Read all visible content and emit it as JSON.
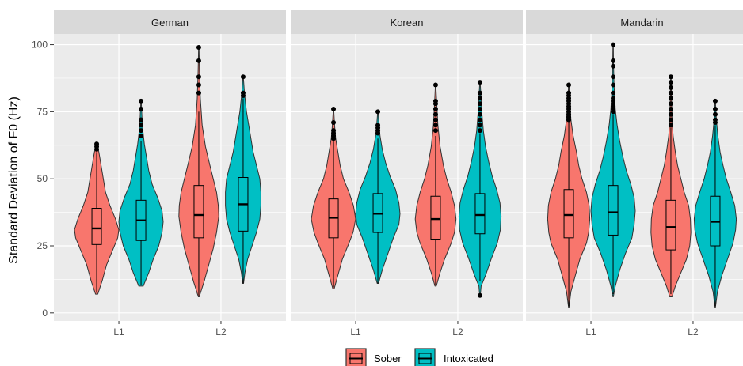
{
  "chart_data": {
    "type": "violin",
    "ylabel": "Standard Deviation of F0 (Hz)",
    "ylim": [
      -3,
      104
    ],
    "yticks": [
      0,
      25,
      50,
      75,
      100
    ],
    "categories": [
      "L1",
      "L2"
    ],
    "series_names": [
      "Sober",
      "Intoxicated"
    ],
    "colors": {
      "Sober": "#F8766D",
      "Intoxicated": "#00BFC4",
      "panel_bg": "#EBEBEB",
      "strip_bg": "#D9D9D9",
      "grid": "#FFFFFF"
    },
    "legend_position": "bottom",
    "grid": true,
    "panels": [
      {
        "label": "German",
        "groups": [
          {
            "x": "L1",
            "series": "Sober",
            "min": 7,
            "max": 63,
            "q1": 25.5,
            "median": 31.5,
            "q3": 39,
            "whisker_low": 7.5,
            "whisker_high": 60,
            "outliers": [
              61,
              62,
              63
            ],
            "density": [
              [
                7,
                0.05
              ],
              [
                12,
                0.25
              ],
              [
                18,
                0.45
              ],
              [
                24,
                0.75
              ],
              [
                28,
                0.95
              ],
              [
                31,
                1.0
              ],
              [
                35,
                0.85
              ],
              [
                40,
                0.6
              ],
              [
                45,
                0.4
              ],
              [
                50,
                0.3
              ],
              [
                55,
                0.2
              ],
              [
                60,
                0.1
              ],
              [
                63,
                0.02
              ]
            ]
          },
          {
            "x": "L1",
            "series": "Intoxicated",
            "min": 10,
            "max": 79,
            "q1": 27,
            "median": 34.5,
            "q3": 42,
            "whisker_low": 10.5,
            "whisker_high": 64,
            "outliers": [
              66,
              68,
              70,
              72,
              76,
              79
            ],
            "density": [
              [
                10,
                0.1
              ],
              [
                15,
                0.35
              ],
              [
                20,
                0.55
              ],
              [
                25,
                0.8
              ],
              [
                30,
                0.95
              ],
              [
                34,
                1.0
              ],
              [
                38,
                0.95
              ],
              [
                43,
                0.75
              ],
              [
                48,
                0.5
              ],
              [
                53,
                0.35
              ],
              [
                58,
                0.25
              ],
              [
                63,
                0.15
              ],
              [
                68,
                0.08
              ],
              [
                73,
                0.04
              ],
              [
                79,
                0.01
              ]
            ]
          },
          {
            "x": "L2",
            "series": "Sober",
            "min": 6,
            "max": 99,
            "q1": 28,
            "median": 36.5,
            "q3": 47.5,
            "whisker_low": 6.5,
            "whisker_high": 75,
            "outliers": [
              82,
              85,
              88,
              94,
              99
            ],
            "density": [
              [
                6,
                0.02
              ],
              [
                12,
                0.25
              ],
              [
                18,
                0.45
              ],
              [
                24,
                0.65
              ],
              [
                30,
                0.8
              ],
              [
                36,
                0.9
              ],
              [
                40,
                0.88
              ],
              [
                45,
                0.8
              ],
              [
                50,
                0.65
              ],
              [
                55,
                0.5
              ],
              [
                62,
                0.3
              ],
              [
                70,
                0.15
              ],
              [
                80,
                0.07
              ],
              [
                90,
                0.03
              ],
              [
                99,
                0.01
              ]
            ]
          },
          {
            "x": "L2",
            "series": "Intoxicated",
            "min": 11,
            "max": 88,
            "q1": 30.5,
            "median": 40.5,
            "q3": 50.5,
            "whisker_low": 11,
            "whisker_high": 80,
            "outliers": [
              81,
              82,
              88
            ],
            "density": [
              [
                11,
                0.02
              ],
              [
                15,
                0.08
              ],
              [
                20,
                0.2
              ],
              [
                25,
                0.4
              ],
              [
                30,
                0.6
              ],
              [
                35,
                0.75
              ],
              [
                40,
                0.8
              ],
              [
                45,
                0.8
              ],
              [
                50,
                0.75
              ],
              [
                55,
                0.6
              ],
              [
                60,
                0.45
              ],
              [
                65,
                0.35
              ],
              [
                70,
                0.25
              ],
              [
                75,
                0.15
              ],
              [
                82,
                0.06
              ],
              [
                88,
                0.01
              ]
            ]
          }
        ]
      },
      {
        "label": "Korean",
        "groups": [
          {
            "x": "L1",
            "series": "Sober",
            "min": 9,
            "max": 76,
            "q1": 28,
            "median": 35.5,
            "q3": 42.5,
            "whisker_low": 9.5,
            "whisker_high": 64,
            "outliers": [
              65,
              66,
              67,
              68,
              71,
              76
            ],
            "density": [
              [
                9,
                0.03
              ],
              [
                14,
                0.2
              ],
              [
                20,
                0.4
              ],
              [
                26,
                0.7
              ],
              [
                30,
                0.88
              ],
              [
                35,
                1.0
              ],
              [
                40,
                0.9
              ],
              [
                45,
                0.7
              ],
              [
                50,
                0.45
              ],
              [
                55,
                0.3
              ],
              [
                60,
                0.2
              ],
              [
                65,
                0.1
              ],
              [
                70,
                0.05
              ],
              [
                76,
                0.01
              ]
            ]
          },
          {
            "x": "L1",
            "series": "Intoxicated",
            "min": 11,
            "max": 75,
            "q1": 30,
            "median": 37,
            "q3": 44.5,
            "whisker_low": 11,
            "whisker_high": 65,
            "outliers": [
              67,
              68,
              69,
              70,
              75
            ],
            "density": [
              [
                11,
                0.03
              ],
              [
                16,
                0.2
              ],
              [
                22,
                0.45
              ],
              [
                28,
                0.7
              ],
              [
                33,
                0.95
              ],
              [
                37,
                1.0
              ],
              [
                41,
                0.95
              ],
              [
                46,
                0.8
              ],
              [
                51,
                0.55
              ],
              [
                56,
                0.35
              ],
              [
                61,
                0.2
              ],
              [
                66,
                0.1
              ],
              [
                70,
                0.05
              ],
              [
                75,
                0.01
              ]
            ]
          },
          {
            "x": "L2",
            "series": "Sober",
            "min": 10,
            "max": 85,
            "q1": 27.5,
            "median": 35,
            "q3": 43.5,
            "whisker_low": 10.5,
            "whisker_high": 66,
            "outliers": [
              68,
              70,
              72,
              74,
              76,
              78,
              79,
              85
            ],
            "density": [
              [
                10,
                0.03
              ],
              [
                15,
                0.2
              ],
              [
                20,
                0.4
              ],
              [
                26,
                0.7
              ],
              [
                30,
                0.85
              ],
              [
                35,
                0.92
              ],
              [
                40,
                0.85
              ],
              [
                45,
                0.7
              ],
              [
                50,
                0.5
              ],
              [
                55,
                0.35
              ],
              [
                62,
                0.2
              ],
              [
                70,
                0.1
              ],
              [
                78,
                0.05
              ],
              [
                85,
                0.01
              ]
            ]
          },
          {
            "x": "L2",
            "series": "Intoxicated",
            "min": 6,
            "max": 86,
            "q1": 29.5,
            "median": 36.5,
            "q3": 44.5,
            "whisker_low": 12,
            "whisker_high": 67,
            "outliers": [
              6.5,
              68,
              70,
              72,
              74,
              76,
              78,
              80,
              82,
              86
            ],
            "density": [
              [
                6,
                0.01
              ],
              [
                10,
                0.05
              ],
              [
                14,
                0.25
              ],
              [
                20,
                0.5
              ],
              [
                26,
                0.78
              ],
              [
                31,
                0.92
              ],
              [
                36,
                0.95
              ],
              [
                41,
                0.9
              ],
              [
                46,
                0.75
              ],
              [
                51,
                0.55
              ],
              [
                56,
                0.4
              ],
              [
                62,
                0.25
              ],
              [
                68,
                0.15
              ],
              [
                75,
                0.08
              ],
              [
                80,
                0.05
              ],
              [
                86,
                0.01
              ]
            ]
          }
        ]
      },
      {
        "label": "Mandarin",
        "groups": [
          {
            "x": "L1",
            "series": "Sober",
            "min": 2,
            "max": 85,
            "q1": 28,
            "median": 36.5,
            "q3": 46,
            "whisker_low": 2.5,
            "whisker_high": 72,
            "outliers": [
              72,
              73,
              74,
              75,
              76,
              77,
              78,
              79,
              80,
              81,
              82,
              85
            ],
            "density": [
              [
                2,
                0.01
              ],
              [
                8,
                0.1
              ],
              [
                14,
                0.3
              ],
              [
                20,
                0.5
              ],
              [
                26,
                0.8
              ],
              [
                30,
                0.9
              ],
              [
                35,
                0.95
              ],
              [
                40,
                0.92
              ],
              [
                45,
                0.8
              ],
              [
                50,
                0.6
              ],
              [
                55,
                0.45
              ],
              [
                60,
                0.35
              ],
              [
                66,
                0.2
              ],
              [
                72,
                0.1
              ],
              [
                78,
                0.05
              ],
              [
                85,
                0.01
              ]
            ]
          },
          {
            "x": "L1",
            "series": "Intoxicated",
            "min": 6,
            "max": 100,
            "q1": 29,
            "median": 37.5,
            "q3": 47.5,
            "whisker_low": 7,
            "whisker_high": 74,
            "outliers": [
              75,
              76,
              77,
              78,
              79,
              80,
              82,
              85,
              88,
              92,
              94,
              100
            ],
            "density": [
              [
                6,
                0.01
              ],
              [
                10,
                0.1
              ],
              [
                16,
                0.3
              ],
              [
                22,
                0.55
              ],
              [
                28,
                0.85
              ],
              [
                33,
                0.95
              ],
              [
                38,
                1.0
              ],
              [
                43,
                0.95
              ],
              [
                48,
                0.8
              ],
              [
                53,
                0.6
              ],
              [
                58,
                0.45
              ],
              [
                64,
                0.3
              ],
              [
                70,
                0.18
              ],
              [
                76,
                0.1
              ],
              [
                85,
                0.04
              ],
              [
                92,
                0.02
              ],
              [
                100,
                0.01
              ]
            ]
          },
          {
            "x": "L2",
            "series": "Sober",
            "min": 6,
            "max": 88,
            "q1": 23.5,
            "median": 32,
            "q3": 42,
            "whisker_low": 7,
            "whisker_high": 69,
            "outliers": [
              70,
              72,
              74,
              76,
              78,
              80,
              82,
              84,
              86,
              88
            ],
            "density": [
              [
                6,
                0.05
              ],
              [
                10,
                0.2
              ],
              [
                15,
                0.45
              ],
              [
                20,
                0.7
              ],
              [
                25,
                0.85
              ],
              [
                30,
                0.9
              ],
              [
                35,
                0.88
              ],
              [
                40,
                0.8
              ],
              [
                45,
                0.6
              ],
              [
                50,
                0.45
              ],
              [
                55,
                0.3
              ],
              [
                60,
                0.2
              ],
              [
                66,
                0.1
              ],
              [
                72,
                0.05
              ],
              [
                80,
                0.03
              ],
              [
                88,
                0.01
              ]
            ]
          },
          {
            "x": "L2",
            "series": "Intoxicated",
            "min": 2,
            "max": 79,
            "q1": 25,
            "median": 34,
            "q3": 43.5,
            "whisker_low": 2.5,
            "whisker_high": 70,
            "outliers": [
              71,
              72,
              74,
              76,
              79
            ],
            "density": [
              [
                2,
                0.01
              ],
              [
                8,
                0.1
              ],
              [
                14,
                0.3
              ],
              [
                20,
                0.55
              ],
              [
                26,
                0.8
              ],
              [
                31,
                0.92
              ],
              [
                35,
                0.95
              ],
              [
                40,
                0.88
              ],
              [
                45,
                0.7
              ],
              [
                50,
                0.5
              ],
              [
                55,
                0.35
              ],
              [
                60,
                0.22
              ],
              [
                66,
                0.12
              ],
              [
                72,
                0.05
              ],
              [
                79,
                0.01
              ]
            ]
          }
        ]
      }
    ]
  }
}
